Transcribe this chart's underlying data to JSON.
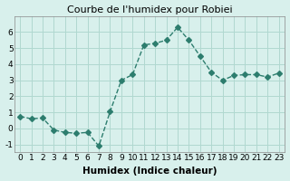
{
  "x": [
    0,
    1,
    2,
    3,
    4,
    5,
    6,
    7,
    8,
    9,
    10,
    11,
    12,
    13,
    14,
    15,
    16,
    17,
    18,
    19,
    20,
    21,
    22,
    23
  ],
  "y": [
    0.75,
    0.6,
    0.65,
    -0.1,
    -0.25,
    -0.3,
    -0.25,
    -1.1,
    1.05,
    3.0,
    3.35,
    5.2,
    5.3,
    5.5,
    6.3,
    5.5,
    4.5,
    3.5,
    3.0,
    3.3,
    3.35,
    3.35,
    3.2,
    3.45
  ],
  "line_color": "#2d7d6e",
  "marker": "D",
  "marker_size": 3,
  "bg_color": "#d8f0ec",
  "grid_color": "#b0d8d0",
  "title": "Courbe de l'humidex pour Robiei",
  "xlabel": "Humidex (Indice chaleur)",
  "ylabel": "",
  "xlim": [
    -0.5,
    23.5
  ],
  "ylim": [
    -1.5,
    7.0
  ],
  "yticks": [
    -1,
    0,
    1,
    2,
    3,
    4,
    5,
    6
  ],
  "xticks": [
    0,
    1,
    2,
    3,
    4,
    5,
    6,
    7,
    8,
    9,
    10,
    11,
    12,
    13,
    14,
    15,
    16,
    17,
    18,
    19,
    20,
    21,
    22,
    23
  ],
  "title_fontsize": 8,
  "label_fontsize": 7.5,
  "tick_fontsize": 6.5
}
